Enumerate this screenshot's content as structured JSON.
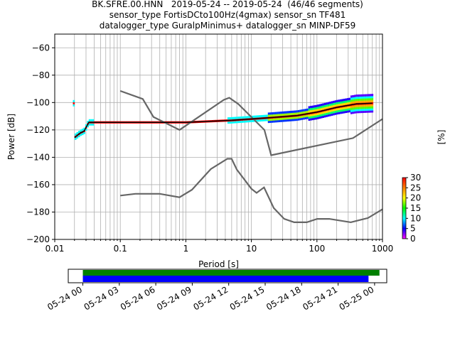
{
  "chart_data": [
    {
      "type": "heatmap",
      "title_lines": [
        "BK.SFRE.00.HNN   2019-05-24 -- 2019-05-24  (46/46 segments)",
        "sensor_type FortisDCto100Hz(4gmax) sensor_sn TF481",
        "datalogger_type GuralpMinimus+ datalogger_sn MINP-DF59"
      ],
      "xlabel": "Period [s]",
      "ylabel": "Power [dB]",
      "xscale": "log",
      "xlim": [
        0.01,
        1000
      ],
      "ylim": [
        -200,
        -50
      ],
      "x_ticks": [
        0.01,
        0.1,
        1,
        10,
        100,
        1000
      ],
      "x_tick_labels": [
        "0.01",
        "0.1",
        "1",
        "10",
        "100",
        "1000"
      ],
      "y_ticks": [
        -200,
        -180,
        -160,
        -140,
        -120,
        -100,
        -80,
        -60
      ],
      "y_tick_labels": [
        "−200",
        "−180",
        "−160",
        "−140",
        "−120",
        "−100",
        "−80",
        "−60"
      ],
      "grid": true,
      "colorbar": {
        "label": "[%]",
        "ticks": [
          0,
          5,
          10,
          15,
          20,
          25,
          30
        ],
        "range": [
          0,
          30
        ],
        "colormap": [
          "#ff00ff",
          "#0000ff",
          "#00ffff",
          "#00ff00",
          "#ffff00",
          "#ff8000",
          "#ff0000"
        ]
      },
      "noise_models": [
        {
          "points": [
            [
              0.1,
              -91.5
            ],
            [
              0.22,
              -97.4
            ],
            [
              0.32,
              -110.5
            ],
            [
              0.8,
              -120
            ],
            [
              3.8,
              -98
            ],
            [
              4.6,
              -96.5
            ],
            [
              6.3,
              -101
            ],
            [
              15.8,
              -120
            ],
            [
              20,
              -138.5
            ],
            [
              354.8,
              -126
            ],
            [
              1000,
              -112
            ]
          ]
        },
        {
          "points": [
            [
              0.1,
              -168
            ],
            [
              0.17,
              -166.7
            ],
            [
              0.4,
              -166.7
            ],
            [
              0.8,
              -169.2
            ],
            [
              1.24,
              -163.7
            ],
            [
              2.4,
              -148.6
            ],
            [
              4.3,
              -141.1
            ],
            [
              5,
              -141.1
            ],
            [
              6,
              -149
            ],
            [
              10,
              -163
            ],
            [
              12,
              -166
            ],
            [
              15.6,
              -162
            ],
            [
              21.9,
              -177
            ],
            [
              31.6,
              -185
            ],
            [
              45,
              -187.5
            ],
            [
              70,
              -187.5
            ],
            [
              101,
              -185
            ],
            [
              154,
              -185
            ],
            [
              328,
              -187.5
            ],
            [
              600,
              -184.4
            ],
            [
              1000,
              -178
            ]
          ]
        }
      ],
      "median": [
        [
          0.02,
          -125.5
        ],
        [
          0.025,
          -122
        ],
        [
          0.028,
          -121
        ],
        [
          0.033,
          -114.5
        ],
        [
          0.1,
          -114.5
        ],
        [
          1,
          -114.5
        ],
        [
          5,
          -113
        ],
        [
          10,
          -112
        ],
        [
          20,
          -111
        ],
        [
          50,
          -109.5
        ],
        [
          100,
          -107
        ],
        [
          200,
          -103.5
        ],
        [
          400,
          -101
        ],
        [
          700,
          -100.5
        ]
      ]
    },
    {
      "type": "bar",
      "x_tick_labels": [
        "05-24 00",
        "05-24 03",
        "05-24 06",
        "05-24 09",
        "05-24 12",
        "05-24 15",
        "05-24 18",
        "05-24 21",
        "05-25 00"
      ],
      "xlim": [
        -1.2,
        25
      ],
      "series": [
        {
          "color": "#008000",
          "start": 0,
          "end": 24.4
        },
        {
          "color": "#0000ff",
          "start": 0,
          "end": 23.5
        }
      ]
    }
  ]
}
